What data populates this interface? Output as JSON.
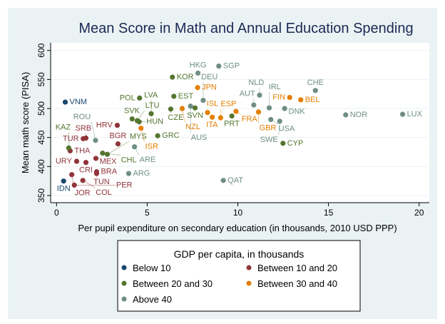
{
  "chart_data": {
    "type": "scatter",
    "title": "Mean Score in Math and Annual Education Spending",
    "xlabel": "Per pupil expenditure on secondary education (in thousands, 2010 USD PPP)",
    "ylabel": "Mean math score (PISA)",
    "xlim": [
      0,
      20
    ],
    "ylim": [
      350,
      600
    ],
    "xticks": [
      0,
      5,
      10,
      15,
      20
    ],
    "yticks": [
      350,
      400,
      450,
      500,
      550,
      600
    ],
    "grid": "horizontal",
    "legend": {
      "title": "GDP per capita, in thousands",
      "placement": "bottom"
    },
    "groups": [
      {
        "name": "Below 10",
        "color": "#1a476f"
      },
      {
        "name": "Between 10 and 20",
        "color": "#90353b"
      },
      {
        "name": "Between 20 and 30",
        "color": "#55752f"
      },
      {
        "name": "Between 30 and 40",
        "color": "#e37e00"
      },
      {
        "name": "Above 40",
        "color": "#6e8e84"
      }
    ],
    "points": [
      {
        "label": "VNM",
        "x": 0.48,
        "y": 511,
        "group": 0
      },
      {
        "label": "IDN",
        "x": 0.39,
        "y": 375,
        "group": 0
      },
      {
        "label": "THA",
        "x": 0.75,
        "y": 427,
        "group": 1
      },
      {
        "label": "TUR",
        "x": 1.47,
        "y": 448,
        "group": 1
      },
      {
        "label": "SRB",
        "x": 1.62,
        "y": 449,
        "group": 1
      },
      {
        "label": "HRV",
        "x": 3.35,
        "y": 471,
        "group": 1
      },
      {
        "label": "BGR",
        "x": 3.39,
        "y": 439,
        "group": 1
      },
      {
        "label": "MEX",
        "x": 2.17,
        "y": 414,
        "group": 1
      },
      {
        "label": "URY",
        "x": 1.11,
        "y": 409,
        "group": 1
      },
      {
        "label": "CRI",
        "x": 1.62,
        "y": 407,
        "group": 1
      },
      {
        "label": "BRA",
        "x": 2.21,
        "y": 391,
        "group": 1
      },
      {
        "label": "TUN",
        "x": 2.21,
        "y": 388,
        "group": 1
      },
      {
        "label": "JOR",
        "x": 0.84,
        "y": 386,
        "group": 1
      },
      {
        "label": "COL",
        "x": 1.45,
        "y": 376,
        "group": 1
      },
      {
        "label": "PER",
        "x": 0.98,
        "y": 368,
        "group": 1
      },
      {
        "label": "KAZ",
        "x": 0.67,
        "y": 432,
        "group": 2
      },
      {
        "label": "CHL",
        "x": 2.54,
        "y": 423,
        "group": 2
      },
      {
        "label": "MYS",
        "x": 2.8,
        "y": 421,
        "group": 2
      },
      {
        "label": "GRC",
        "x": 5.58,
        "y": 453,
        "group": 2
      },
      {
        "label": "SVK",
        "x": 4.17,
        "y": 482,
        "group": 2
      },
      {
        "label": "HUN",
        "x": 4.56,
        "y": 477,
        "group": 2
      },
      {
        "label": "LTU",
        "x": 4.45,
        "y": 479,
        "group": 2
      },
      {
        "label": "LVA",
        "x": 5.22,
        "y": 491,
        "group": 2
      },
      {
        "label": "POL",
        "x": 4.58,
        "y": 518,
        "group": 2
      },
      {
        "label": "EST",
        "x": 6.47,
        "y": 521,
        "group": 2
      },
      {
        "label": "KOR",
        "x": 6.39,
        "y": 554,
        "group": 2
      },
      {
        "label": "CZE",
        "x": 6.3,
        "y": 499,
        "group": 2
      },
      {
        "label": "SVN",
        "x": 7.64,
        "y": 501,
        "group": 2
      },
      {
        "label": "PRT",
        "x": 9.67,
        "y": 487,
        "group": 2
      },
      {
        "label": "CYP",
        "x": 12.49,
        "y": 440,
        "group": 2
      },
      {
        "label": "ISR",
        "x": 4.66,
        "y": 466,
        "group": 3
      },
      {
        "label": "JPN",
        "x": 7.78,
        "y": 536,
        "group": 3
      },
      {
        "label": "NZL",
        "x": 6.93,
        "y": 500,
        "group": 3
      },
      {
        "label": "ISL",
        "x": 8.33,
        "y": 493,
        "group": 3
      },
      {
        "label": "ITA",
        "x": 8.59,
        "y": 485,
        "group": 3
      },
      {
        "label": "ESP",
        "x": 9.05,
        "y": 484,
        "group": 3
      },
      {
        "label": "FRA",
        "x": 9.9,
        "y": 495,
        "group": 3
      },
      {
        "label": "GBR",
        "x": 11.14,
        "y": 494,
        "group": 3
      },
      {
        "label": "FIN",
        "x": 12.86,
        "y": 519,
        "group": 3
      },
      {
        "label": "BEL",
        "x": 13.47,
        "y": 515,
        "group": 3
      },
      {
        "label": "ROU",
        "x": 2.15,
        "y": 445,
        "group": 4
      },
      {
        "label": "ARE",
        "x": 4.3,
        "y": 434,
        "group": 4
      },
      {
        "label": "ARG",
        "x": 3.98,
        "y": 388,
        "group": 4
      },
      {
        "label": "QAT",
        "x": 9.2,
        "y": 376,
        "group": 4
      },
      {
        "label": "SGP",
        "x": 8.95,
        "y": 573,
        "group": 4
      },
      {
        "label": "HKG",
        "x": 7.8,
        "y": 561,
        "group": 4
      },
      {
        "label": "DEU",
        "x": 8.09,
        "y": 514,
        "group": 4
      },
      {
        "label": "AUS",
        "x": 7.39,
        "y": 504,
        "group": 4
      },
      {
        "label": "AUT",
        "x": 10.88,
        "y": 506,
        "group": 4
      },
      {
        "label": "NLD",
        "x": 11.2,
        "y": 523,
        "group": 4
      },
      {
        "label": "IRL",
        "x": 11.73,
        "y": 501,
        "group": 4
      },
      {
        "label": "DNK",
        "x": 12.58,
        "y": 500,
        "group": 4
      },
      {
        "label": "USA",
        "x": 11.82,
        "y": 481,
        "group": 4
      },
      {
        "label": "SWE",
        "x": 12.31,
        "y": 478,
        "group": 4
      },
      {
        "label": "CHE",
        "x": 14.28,
        "y": 531,
        "group": 4
      },
      {
        "label": "NOR",
        "x": 15.95,
        "y": 489,
        "group": 4
      },
      {
        "label": "LUX",
        "x": 19.09,
        "y": 490,
        "group": 4
      }
    ]
  }
}
